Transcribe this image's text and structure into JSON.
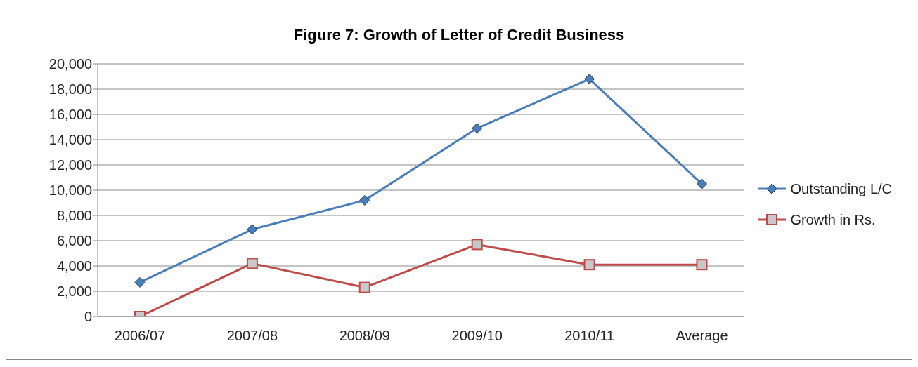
{
  "chart_data": {
    "type": "line",
    "title": "Figure 7: Growth of Letter of Credit Business",
    "categories": [
      "2006/07",
      "2007/08",
      "2008/09",
      "2009/10",
      "2010/11",
      "Average"
    ],
    "series": [
      {
        "name": "Outstanding L/C",
        "color": "#4a7ebb",
        "marker": "diamond",
        "values": [
          2700,
          6900,
          9200,
          14900,
          18800,
          10500
        ]
      },
      {
        "name": "Growth in Rs.",
        "color": "#be4b48",
        "marker": "square",
        "values": [
          0,
          4200,
          2300,
          5700,
          4100,
          4100
        ]
      }
    ],
    "ylim": [
      0,
      20000
    ],
    "yticks": [
      0,
      {
        "value": 2000,
        "label": "2,000"
      },
      {
        "value": 4000,
        "label": "4,000"
      },
      {
        "value": 6000,
        "label": "6,000"
      },
      {
        "value": 8000,
        "label": "8,000"
      },
      {
        "value": 10000,
        "label": "10,000"
      },
      {
        "value": 12000,
        "label": "12,000"
      },
      {
        "value": 14000,
        "label": "14,000"
      },
      {
        "value": 16000,
        "label": "16,000"
      },
      {
        "value": 18000,
        "label": "18,000"
      },
      {
        "value": 20000,
        "label": "20,000"
      }
    ],
    "grid": "y",
    "legend": "right",
    "line_style": "solid"
  }
}
